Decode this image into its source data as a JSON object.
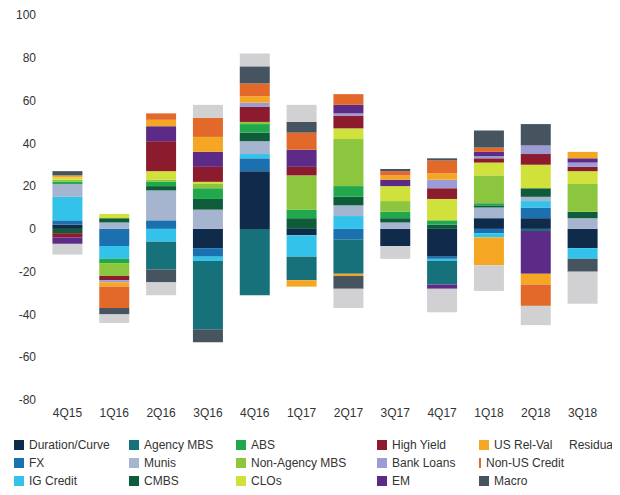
{
  "chart_data": {
    "type": "bar",
    "stacked": true,
    "grid": false,
    "legend": "bottom",
    "categories": [
      "4Q15",
      "1Q16",
      "2Q16",
      "3Q16",
      "4Q16",
      "1Q17",
      "2Q17",
      "3Q17",
      "4Q17",
      "1Q18",
      "2Q18",
      "3Q18"
    ],
    "ylim": [
      -80,
      100
    ],
    "yticks": [
      -80,
      -60,
      -40,
      -20,
      0,
      20,
      40,
      60,
      80,
      100
    ],
    "series": [
      {
        "name": "Duration/Curve",
        "color": "#0f2a4a",
        "values": [
          2,
          0,
          0,
          -9,
          27,
          -3,
          0,
          -8,
          -13,
          5,
          5,
          -9
        ]
      },
      {
        "name": "FX",
        "color": "#1b70b0",
        "values": [
          2,
          -8,
          4,
          -4,
          6,
          0,
          -5,
          0,
          -1,
          -2,
          5,
          0
        ]
      },
      {
        "name": "IG Credit",
        "color": "#33c3ea",
        "values": [
          11,
          -6,
          -6,
          -2,
          2,
          -10,
          6,
          0,
          -1,
          -2,
          3,
          -5
        ]
      },
      {
        "name": "Agency MBS",
        "color": "#17717b",
        "values": [
          0,
          0,
          -13,
          -32,
          -31,
          -11,
          -16,
          0,
          -11,
          0,
          -1,
          0
        ]
      },
      {
        "name": "Munis",
        "color": "#a5b4cf",
        "values": [
          6,
          3,
          14,
          9,
          6,
          0,
          5,
          3,
          0,
          5,
          2,
          5
        ]
      },
      {
        "name": "CMBS",
        "color": "#0f5c3b",
        "values": [
          -2,
          2,
          2,
          5,
          4,
          5,
          4,
          2,
          2,
          1,
          4,
          3
        ]
      },
      {
        "name": "ABS",
        "color": "#22a84c",
        "values": [
          1,
          -2,
          2,
          5,
          4,
          4,
          5,
          3,
          2,
          1,
          0,
          0
        ]
      },
      {
        "name": "Non-Agency MBS",
        "color": "#8cc63f",
        "values": [
          1,
          -6,
          1,
          2,
          1,
          16,
          22,
          5,
          0,
          13,
          0,
          13
        ]
      },
      {
        "name": "CLOs",
        "color": "#d0e13c",
        "values": [
          1,
          2,
          4,
          1,
          0,
          0,
          5,
          7,
          10,
          6,
          11,
          6
        ]
      },
      {
        "name": "High Yield",
        "color": "#8c1b2d",
        "values": [
          -2,
          -2,
          14,
          7,
          7,
          4,
          6,
          0,
          5,
          2,
          5,
          2
        ]
      },
      {
        "name": "Bank Loans",
        "color": "#9b9cd6",
        "values": [
          0,
          -1,
          0,
          0,
          2,
          0,
          1,
          0,
          4,
          1,
          4,
          2
        ]
      },
      {
        "name": "EM",
        "color": "#5c2a87",
        "values": [
          -3,
          0,
          7,
          7,
          0,
          8,
          4,
          3,
          -2,
          2,
          -20,
          2
        ]
      },
      {
        "name": "US Rel-Val",
        "color": "#f5a623",
        "values": [
          1,
          -2,
          3,
          7,
          3,
          -3,
          -1,
          2,
          3,
          -13,
          -5,
          3
        ]
      },
      {
        "name": "Non-US Credit",
        "color": "#e2692a",
        "values": [
          0,
          -10,
          3,
          9,
          6,
          8,
          5,
          2,
          6,
          2,
          -10,
          0
        ]
      },
      {
        "name": "Macro",
        "color": "#45545f",
        "values": [
          2,
          -3,
          -6,
          -6,
          8,
          5,
          -6,
          1,
          1,
          8,
          10,
          -6
        ]
      },
      {
        "name": "Residual",
        "color": "#d1d1d4",
        "values": [
          -5,
          -4,
          -6,
          6,
          6,
          8,
          -9,
          -6,
          -11,
          -12,
          -9,
          -15
        ]
      }
    ]
  }
}
